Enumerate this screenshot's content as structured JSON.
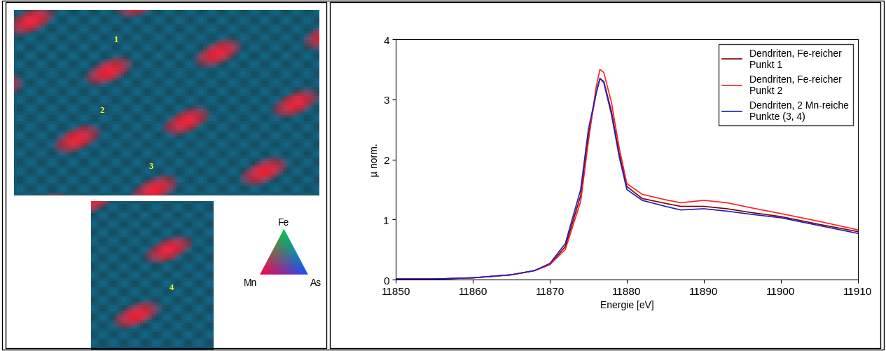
{
  "chart_data": {
    "type": "line",
    "x_label": "Energie [eV]",
    "y_label": "µ norm.",
    "x": [
      11850,
      11855,
      11860,
      11865,
      11868,
      11870,
      11872,
      11874,
      11875,
      11876,
      11876.5,
      11877,
      11878,
      11879,
      11880,
      11882,
      11885,
      11887,
      11890,
      11893,
      11896,
      11900,
      11905,
      11910
    ],
    "series": [
      {
        "name": "Dendriten, Fe-reicher\nPunkt 1",
        "color": "#800000",
        "values": [
          0.01,
          0.01,
          0.03,
          0.08,
          0.15,
          0.25,
          0.55,
          1.4,
          2.4,
          3.1,
          3.35,
          3.3,
          2.8,
          2.1,
          1.55,
          1.35,
          1.27,
          1.22,
          1.22,
          1.18,
          1.12,
          1.05,
          0.92,
          0.8
        ]
      },
      {
        "name": "Dendriten, Fe-reicher\nPunkt 2",
        "color": "#ff2020",
        "values": [
          0.01,
          0.01,
          0.03,
          0.08,
          0.15,
          0.25,
          0.5,
          1.3,
          2.3,
          3.2,
          3.5,
          3.45,
          2.95,
          2.2,
          1.6,
          1.42,
          1.33,
          1.28,
          1.32,
          1.28,
          1.2,
          1.1,
          0.97,
          0.83
        ]
      },
      {
        "name": "Dendriten, 2 Mn-reiche\nPunkte (3, 4)",
        "color": "#2020c0",
        "values": [
          0.01,
          0.01,
          0.03,
          0.08,
          0.15,
          0.27,
          0.6,
          1.5,
          2.5,
          3.1,
          3.35,
          3.28,
          2.75,
          2.05,
          1.5,
          1.32,
          1.22,
          1.16,
          1.18,
          1.14,
          1.09,
          1.03,
          0.9,
          0.77
        ]
      }
    ],
    "xlim": [
      11850,
      11910
    ],
    "xticks": [
      11850,
      11860,
      11870,
      11880,
      11890,
      11900,
      11910
    ],
    "ylim": [
      0,
      4
    ],
    "yticks": [
      0,
      1,
      2,
      3,
      4
    ],
    "legend": "upper right",
    "grid": false
  },
  "map": {
    "points": [
      "1",
      "2",
      "3",
      "4"
    ],
    "color_legend": {
      "top": "Fe",
      "left": "Mn",
      "right": "As"
    }
  }
}
